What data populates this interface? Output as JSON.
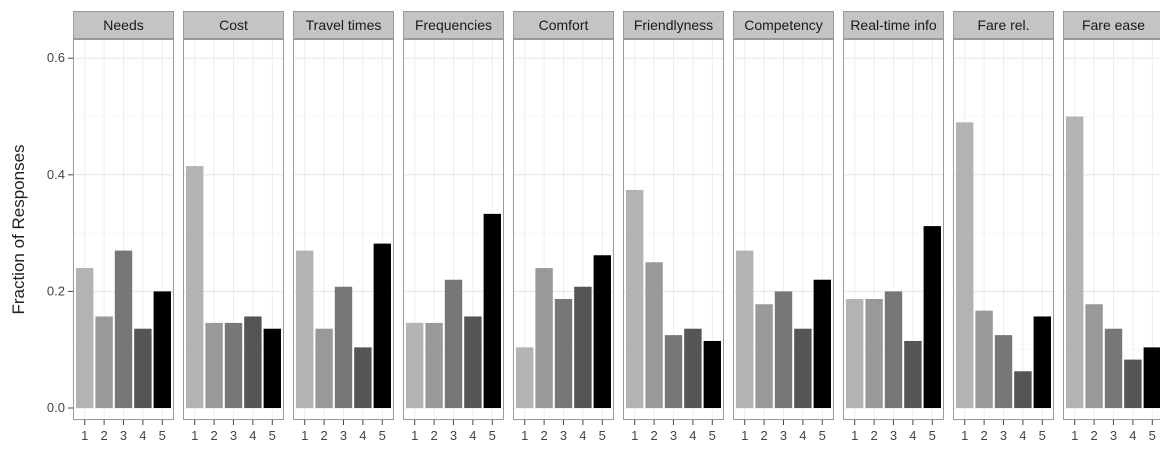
{
  "chart_data": {
    "type": "bar",
    "facets": [
      {
        "label": "Needs",
        "values": [
          0.24,
          0.157,
          0.27,
          0.136,
          0.2
        ]
      },
      {
        "label": "Cost",
        "values": [
          0.415,
          0.146,
          0.146,
          0.157,
          0.136
        ]
      },
      {
        "label": "Travel times",
        "values": [
          0.27,
          0.136,
          0.208,
          0.104,
          0.282
        ]
      },
      {
        "label": "Frequencies",
        "values": [
          0.146,
          0.146,
          0.22,
          0.157,
          0.333
        ]
      },
      {
        "label": "Comfort",
        "values": [
          0.104,
          0.24,
          0.187,
          0.208,
          0.262
        ]
      },
      {
        "label": "Friendlyness",
        "values": [
          0.374,
          0.25,
          0.125,
          0.136,
          0.115
        ]
      },
      {
        "label": "Competency",
        "values": [
          0.27,
          0.178,
          0.2,
          0.136,
          0.22
        ]
      },
      {
        "label": "Real-time info",
        "values": [
          0.187,
          0.187,
          0.2,
          0.115,
          0.312
        ]
      },
      {
        "label": "Fare rel.",
        "values": [
          0.49,
          0.167,
          0.125,
          0.063,
          0.157
        ]
      },
      {
        "label": "Fare ease",
        "values": [
          0.5,
          0.178,
          0.136,
          0.083,
          0.104
        ]
      }
    ],
    "categories": [
      "1",
      "2",
      "3",
      "4",
      "5"
    ],
    "bar_colors": [
      "#b3b3b3",
      "#999999",
      "#777777",
      "#555555",
      "#000000"
    ],
    "ylabel": "Fraction of Responses",
    "xlabel": "",
    "ylim": [
      -0.02,
      0.63
    ],
    "yticks": [
      0.0,
      0.2,
      0.4,
      0.6
    ],
    "ytick_labels": [
      "0.0",
      "0.2",
      "0.4",
      "0.6"
    ],
    "grid": true,
    "legend": "none",
    "colors": {
      "strip_bg": "#c4c4c4",
      "panel_border": "#9a9a9a",
      "grid": "#ececec"
    }
  }
}
